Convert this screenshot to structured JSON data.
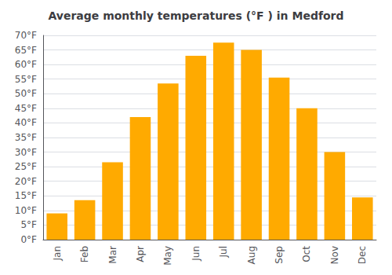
{
  "chart_data": {
    "type": "bar",
    "title": "Average monthly temperatures (°F ) in Medford",
    "categories": [
      "Jan",
      "Feb",
      "Mar",
      "Apr",
      "May",
      "Jun",
      "Jul",
      "Aug",
      "Sep",
      "Oct",
      "Nov",
      "Dec"
    ],
    "values": [
      9,
      13.5,
      26.5,
      42,
      53.5,
      63,
      67.5,
      65,
      55.5,
      45,
      30,
      14.5
    ],
    "color": "#FFAA00",
    "ylim": [
      0,
      70
    ],
    "yticks": [
      {
        "value": 0,
        "label": "0°F"
      },
      {
        "value": 5,
        "label": "5°F"
      },
      {
        "value": 10,
        "label": "10°F"
      },
      {
        "value": 15,
        "label": "15°F"
      },
      {
        "value": 20,
        "label": "20°F"
      },
      {
        "value": 25,
        "label": "25°F"
      },
      {
        "value": 30,
        "label": "30°F"
      },
      {
        "value": 35,
        "label": "35°F"
      },
      {
        "value": 40,
        "label": "40°F"
      },
      {
        "value": 45,
        "label": "45°F"
      },
      {
        "value": 50,
        "label": "50°F"
      },
      {
        "value": 55,
        "label": "55°F"
      },
      {
        "value": 60,
        "label": "60°F"
      },
      {
        "value": 65,
        "label": "65°F"
      },
      {
        "value": 70,
        "label": "70°F"
      }
    ],
    "grid": true
  }
}
